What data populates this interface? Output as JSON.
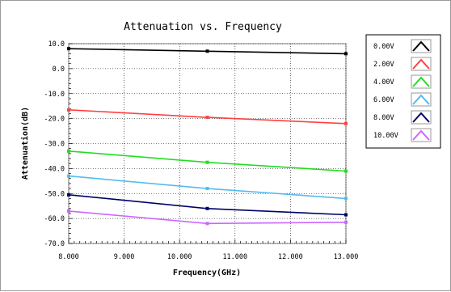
{
  "chart_data": {
    "type": "line",
    "title": "Attenuation vs. Frequency",
    "xlabel": "Frequency(GHz)",
    "ylabel": "Attenuation(dB)",
    "xlim": [
      8.0,
      13.0
    ],
    "ylim": [
      -70.0,
      10.0
    ],
    "x_ticks": [
      "8.000",
      "9.000",
      "10.000",
      "11.000",
      "12.000",
      "13.000"
    ],
    "y_ticks": [
      "10.0",
      "0.0",
      "-10.0",
      "-20.0",
      "-30.0",
      "-40.0",
      "-50.0",
      "-60.0",
      "-70.0"
    ],
    "grid": true,
    "legend_position": "right",
    "x": [
      8.0,
      10.5,
      13.0
    ],
    "series": [
      {
        "name": "0.00V",
        "color": "#000000",
        "values": [
          8.0,
          7.0,
          6.0
        ]
      },
      {
        "name": "2.00V",
        "color": "#ff4040",
        "values": [
          -16.5,
          -19.5,
          -22.0
        ]
      },
      {
        "name": "4.00V",
        "color": "#22dd22",
        "values": [
          -33.0,
          -37.5,
          -41.0
        ]
      },
      {
        "name": "6.00V",
        "color": "#55bbee",
        "values": [
          -43.0,
          -48.0,
          -52.0
        ]
      },
      {
        "name": "8.00V",
        "color": "#000066",
        "values": [
          -50.5,
          -56.0,
          -58.5
        ]
      },
      {
        "name": "10.00V",
        "color": "#cc66ff",
        "values": [
          -57.0,
          -62.0,
          -61.5
        ]
      }
    ]
  }
}
